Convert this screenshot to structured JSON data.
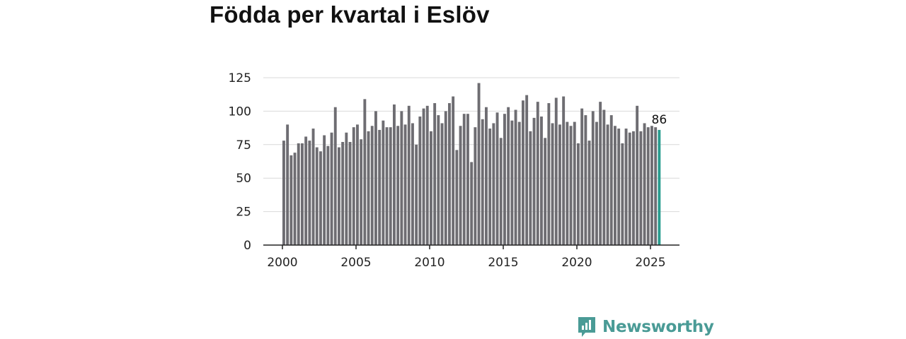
{
  "title": "Födda per kvartal i Eslöv",
  "brand": {
    "name": "Newsworthy"
  },
  "colors": {
    "bar": "#6e6d72",
    "highlight": "#2a9d8f",
    "grid": "#d9d9d9",
    "axis": "#222222",
    "brand": "#4a9b96"
  },
  "chart_data": {
    "type": "bar",
    "title": "Födda per kvartal i Eslöv",
    "xlabel": "",
    "ylabel": "",
    "ylim": [
      0,
      125
    ],
    "yticks": [
      0,
      25,
      50,
      75,
      100,
      125
    ],
    "xticks": [
      2000,
      2005,
      2010,
      2015,
      2020,
      2025
    ],
    "grid": true,
    "start_year": 2000,
    "frequency": "quarterly",
    "categories": [
      "2000 Q1",
      "2000 Q2",
      "2000 Q3",
      "2000 Q4",
      "2001 Q1",
      "2001 Q2",
      "2001 Q3",
      "2001 Q4",
      "2002 Q1",
      "2002 Q2",
      "2002 Q3",
      "2002 Q4",
      "2003 Q1",
      "2003 Q2",
      "2003 Q3",
      "2003 Q4",
      "2004 Q1",
      "2004 Q2",
      "2004 Q3",
      "2004 Q4",
      "2005 Q1",
      "2005 Q2",
      "2005 Q3",
      "2005 Q4",
      "2006 Q1",
      "2006 Q2",
      "2006 Q3",
      "2006 Q4",
      "2007 Q1",
      "2007 Q2",
      "2007 Q3",
      "2007 Q4",
      "2008 Q1",
      "2008 Q2",
      "2008 Q3",
      "2008 Q4",
      "2009 Q1",
      "2009 Q2",
      "2009 Q3",
      "2009 Q4",
      "2010 Q1",
      "2010 Q2",
      "2010 Q3",
      "2010 Q4",
      "2011 Q1",
      "2011 Q2",
      "2011 Q3",
      "2011 Q4",
      "2012 Q1",
      "2012 Q2",
      "2012 Q3",
      "2012 Q4",
      "2013 Q1",
      "2013 Q2",
      "2013 Q3",
      "2013 Q4",
      "2014 Q1",
      "2014 Q2",
      "2014 Q3",
      "2014 Q4",
      "2015 Q1",
      "2015 Q2",
      "2015 Q3",
      "2015 Q4",
      "2016 Q1",
      "2016 Q2",
      "2016 Q3",
      "2016 Q4",
      "2017 Q1",
      "2017 Q2",
      "2017 Q3",
      "2017 Q4",
      "2018 Q1",
      "2018 Q2",
      "2018 Q3",
      "2018 Q4",
      "2019 Q1",
      "2019 Q2",
      "2019 Q3",
      "2019 Q4",
      "2020 Q1",
      "2020 Q2",
      "2020 Q3",
      "2020 Q4",
      "2021 Q1",
      "2021 Q2",
      "2021 Q3",
      "2021 Q4",
      "2022 Q1",
      "2022 Q2",
      "2022 Q3",
      "2022 Q4",
      "2023 Q1",
      "2023 Q2",
      "2023 Q3",
      "2023 Q4",
      "2024 Q1",
      "2024 Q2",
      "2024 Q3",
      "2024 Q4",
      "2025 Q1",
      "2025 Q2",
      "2025 Q3"
    ],
    "values": [
      78,
      90,
      67,
      69,
      76,
      76,
      81,
      78,
      87,
      73,
      70,
      82,
      74,
      84,
      103,
      73,
      77,
      84,
      77,
      88,
      90,
      79,
      109,
      85,
      89,
      100,
      86,
      93,
      88,
      88,
      105,
      89,
      100,
      90,
      104,
      91,
      75,
      96,
      102,
      104,
      85,
      106,
      97,
      91,
      100,
      106,
      111,
      71,
      89,
      98,
      98,
      62,
      88,
      121,
      94,
      103,
      87,
      91,
      99,
      80,
      98,
      103,
      93,
      101,
      92,
      108,
      112,
      85,
      95,
      107,
      96,
      80,
      106,
      91,
      110,
      90,
      111,
      92,
      89,
      92,
      76,
      102,
      97,
      78,
      100,
      92,
      107,
      101,
      90,
      97,
      89,
      87,
      76,
      87,
      84,
      85,
      104,
      85,
      91,
      88,
      89,
      88,
      86
    ],
    "highlight": {
      "category": "2025 Q3",
      "value": 86,
      "label": "86"
    }
  }
}
